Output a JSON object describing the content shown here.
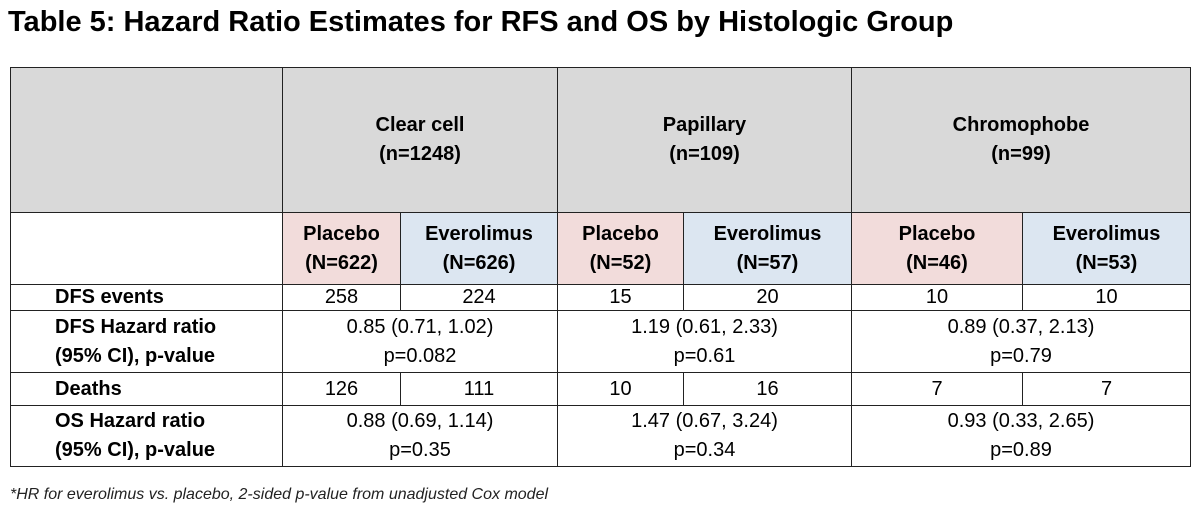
{
  "title": "Table 5: Hazard Ratio Estimates for RFS and OS by Histologic Group",
  "table": {
    "groups": [
      {
        "name": "Clear cell",
        "n": "(n=1248)",
        "arms": [
          {
            "label": "Placebo",
            "n": "(N=622)"
          },
          {
            "label": "Everolimus",
            "n": "(N=626)"
          }
        ]
      },
      {
        "name": "Papillary",
        "n": "(n=109)",
        "arms": [
          {
            "label": "Placebo",
            "n": "(N=52)"
          },
          {
            "label": "Everolimus",
            "n": "(N=57)"
          }
        ]
      },
      {
        "name": "Chromophobe",
        "n": "(n=99)",
        "arms": [
          {
            "label": "Placebo",
            "n": "(N=46)"
          },
          {
            "label": "Everolimus",
            "n": "(N=53)"
          }
        ]
      }
    ],
    "rows": [
      {
        "label": [
          "DFS events"
        ],
        "arms": [
          "258",
          "224",
          "15",
          "20",
          "10",
          "10"
        ]
      },
      {
        "label": [
          "DFS Hazard ratio",
          "(95% CI), p-value"
        ],
        "groups": [
          [
            "0.85 (0.71, 1.02)",
            "p=0.082"
          ],
          [
            "1.19 (0.61, 2.33)",
            "p=0.61"
          ],
          [
            "0.89 (0.37, 2.13)",
            "p=0.79"
          ]
        ]
      },
      {
        "label": [
          "Deaths"
        ],
        "arms": [
          "126",
          "111",
          "10",
          "16",
          "7",
          "7"
        ]
      },
      {
        "label": [
          "OS Hazard ratio",
          "(95% CI), p-value"
        ],
        "groups": [
          [
            "0.88 (0.69, 1.14)",
            "p=0.35"
          ],
          [
            "1.47 (0.67, 3.24)",
            "p=0.34"
          ],
          [
            "0.93 (0.33, 2.65)",
            "p=0.89"
          ]
        ]
      }
    ]
  },
  "footnote": "*HR for everolimus vs. placebo, 2-sided p-value from unadjusted Cox model"
}
